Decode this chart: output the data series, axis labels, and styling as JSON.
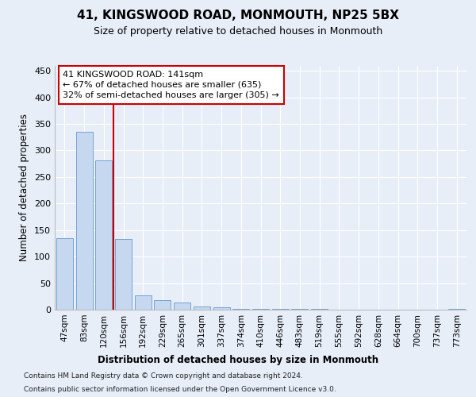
{
  "title1": "41, KINGSWOOD ROAD, MONMOUTH, NP25 5BX",
  "title2": "Size of property relative to detached houses in Monmouth",
  "xlabel": "Distribution of detached houses by size in Monmouth",
  "ylabel": "Number of detached properties",
  "categories": [
    "47sqm",
    "83sqm",
    "120sqm",
    "156sqm",
    "192sqm",
    "229sqm",
    "265sqm",
    "301sqm",
    "337sqm",
    "374sqm",
    "410sqm",
    "446sqm",
    "483sqm",
    "519sqm",
    "555sqm",
    "592sqm",
    "628sqm",
    "664sqm",
    "700sqm",
    "737sqm",
    "773sqm"
  ],
  "values": [
    135,
    335,
    281,
    133,
    27,
    18,
    13,
    6,
    5,
    2,
    2,
    1,
    1,
    1,
    0,
    0,
    0,
    0,
    0,
    0,
    2
  ],
  "bar_color": "#c5d8f0",
  "bar_edge_color": "#6699cc",
  "vline_x_idx": 2.5,
  "vline_color": "#cc0000",
  "annotation_line1": "41 KINGSWOOD ROAD: 141sqm",
  "annotation_line2": "← 67% of detached houses are smaller (635)",
  "annotation_line3": "32% of semi-detached houses are larger (305) →",
  "annotation_box_color": "#ffffff",
  "annotation_box_edge": "#cc0000",
  "ylim": [
    0,
    460
  ],
  "yticks": [
    0,
    50,
    100,
    150,
    200,
    250,
    300,
    350,
    400,
    450
  ],
  "footnote1": "Contains HM Land Registry data © Crown copyright and database right 2024.",
  "footnote2": "Contains public sector information licensed under the Open Government Licence v3.0.",
  "background_color": "#e8eef8",
  "plot_bg_color": "#e8eef8",
  "grid_color": "#ffffff"
}
